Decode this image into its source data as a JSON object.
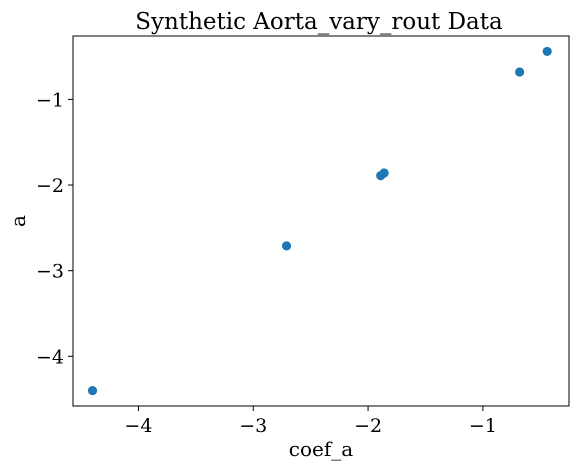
{
  "chart_data": {
    "type": "scatter",
    "title": "Synthetic Aorta_vary_rout Data",
    "xlabel": "coef_a",
    "ylabel": "a",
    "xlim": [
      -4.57,
      -0.25
    ],
    "ylim": [
      -4.58,
      -0.26
    ],
    "x_ticks": [
      -4,
      -3,
      -2,
      -1
    ],
    "y_ticks": [
      -4,
      -3,
      -2,
      -1
    ],
    "x_tick_labels": [
      "−4",
      "−3",
      "−2",
      "−1"
    ],
    "y_tick_labels": [
      "−4",
      "−3",
      "−2",
      "−1"
    ],
    "grid": false,
    "marker_color": "#1f77b4",
    "points": [
      {
        "x": -4.4,
        "y": -4.4
      },
      {
        "x": -2.71,
        "y": -2.71
      },
      {
        "x": -1.89,
        "y": -1.89
      },
      {
        "x": -1.86,
        "y": -1.86
      },
      {
        "x": -0.68,
        "y": -0.68
      },
      {
        "x": -0.44,
        "y": -0.44
      }
    ]
  }
}
